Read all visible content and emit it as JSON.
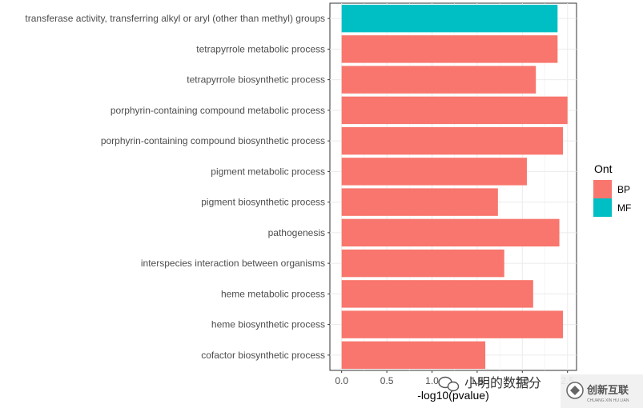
{
  "chart_data": {
    "type": "bar",
    "orientation": "horizontal",
    "categories": [
      "transferase activity, transferring alkyl or aryl (other than methyl) groups",
      "tetrapyrrole metabolic process",
      "tetrapyrrole biosynthetic process",
      "porphyrin-containing compound metabolic process",
      "porphyrin-containing compound biosynthetic process",
      "pigment metabolic process",
      "pigment biosynthetic process",
      "pathogenesis",
      "interspecies interaction between organisms",
      "heme metabolic process",
      "heme biosynthetic process",
      "cofactor biosynthetic process"
    ],
    "values": [
      2.39,
      2.39,
      2.15,
      2.5,
      2.45,
      2.05,
      1.73,
      2.41,
      1.8,
      2.12,
      2.45,
      1.59
    ],
    "groups": [
      "MF",
      "BP",
      "BP",
      "BP",
      "BP",
      "BP",
      "BP",
      "BP",
      "BP",
      "BP",
      "BP",
      "BP"
    ],
    "xlabel": "-log10(pvalue)",
    "ylabel": "",
    "xlim": [
      -0.13,
      2.6
    ],
    "x_ticks": [
      "0.0",
      "0.5",
      "1.0",
      "1.5",
      "2.0",
      "2.5"
    ],
    "x_tick_values": [
      0,
      0.5,
      1.0,
      1.5,
      2.0,
      2.5
    ],
    "grid": true,
    "legend": {
      "title": "Ont",
      "position": "right",
      "entries": [
        {
          "label": "BP",
          "color": "#F8766D"
        },
        {
          "label": "MF",
          "color": "#00BFC4"
        }
      ]
    },
    "colors": {
      "BP": "#F8766D",
      "MF": "#00BFC4"
    }
  },
  "watermark": {
    "text": "小明的数据分",
    "brand": "创新互联",
    "brand_sub": "CHUANG XIN HU LIAN"
  }
}
